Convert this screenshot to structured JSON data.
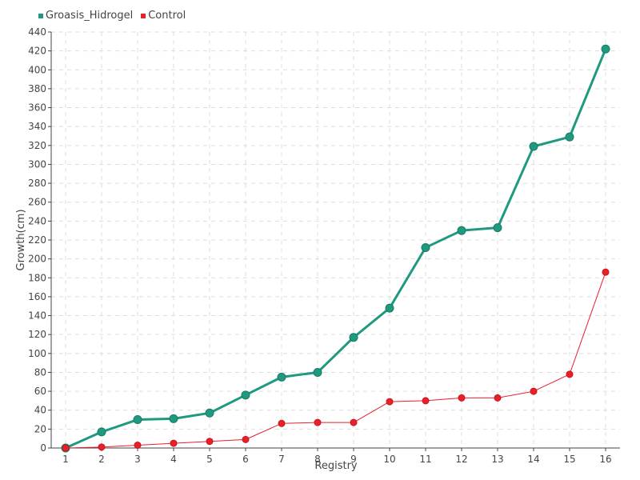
{
  "chart_data": {
    "type": "line",
    "x": [
      "1",
      "2",
      "3",
      "4",
      "5",
      "6",
      "7",
      "8",
      "9",
      "10",
      "11",
      "12",
      "13",
      "14",
      "15",
      "16"
    ],
    "xlabel": "Registry",
    "ylabel": "Growth(cm)",
    "ylim": [
      0,
      440
    ],
    "yticks": [
      0,
      20,
      40,
      60,
      80,
      100,
      120,
      140,
      160,
      180,
      200,
      220,
      240,
      260,
      280,
      300,
      320,
      340,
      360,
      380,
      400,
      420,
      440
    ],
    "grid": true,
    "legend_position": "top-left",
    "series": [
      {
        "name": "Groasis_Hidrogel",
        "color": "#1f9a80",
        "values": [
          0,
          17,
          30,
          31,
          37,
          56,
          75,
          80,
          117,
          148,
          212,
          230,
          233,
          319,
          329,
          422
        ]
      },
      {
        "name": "Control",
        "color": "#e8202a",
        "values": [
          0,
          1,
          3,
          5,
          7,
          9,
          26,
          27,
          27,
          49,
          50,
          53,
          53,
          60,
          78,
          186
        ]
      }
    ]
  }
}
